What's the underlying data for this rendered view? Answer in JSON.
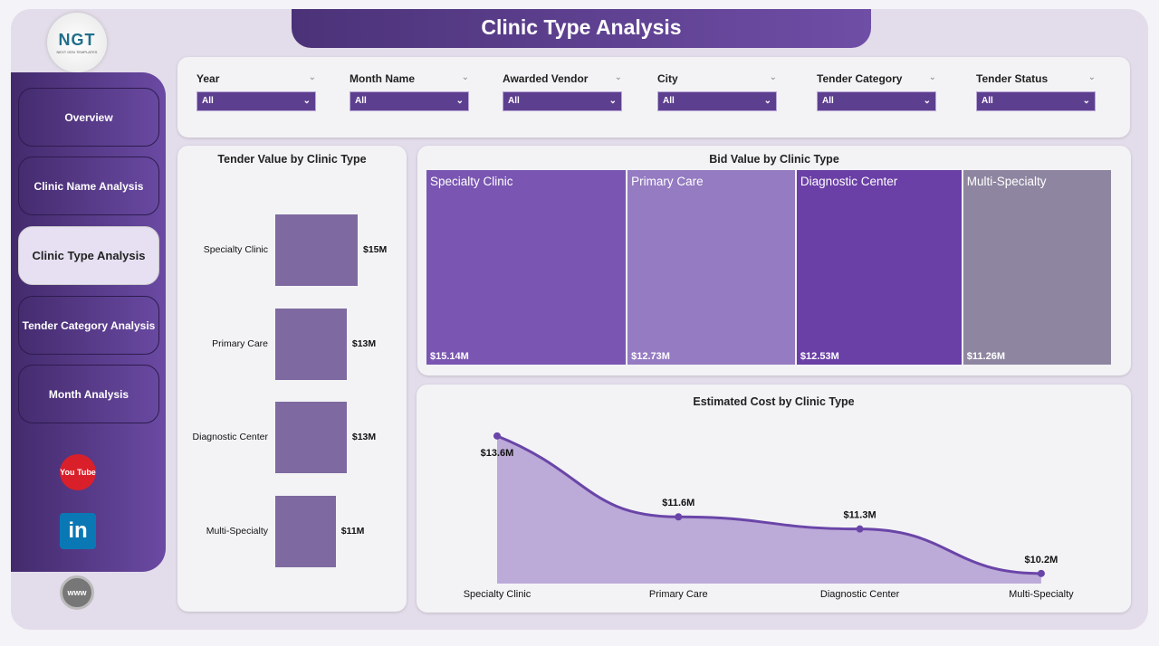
{
  "title": "Clinic Type Analysis",
  "logo": {
    "text": "NGT",
    "subtitle": "NEXT GEN TEMPLATES"
  },
  "nav": [
    {
      "label": "Overview"
    },
    {
      "label": "Clinic Name Analysis"
    },
    {
      "label": "Clinic Type Analysis",
      "active": true
    },
    {
      "label": "Tender Category Analysis"
    },
    {
      "label": "Month Analysis"
    }
  ],
  "social": [
    {
      "icon": "youtube-icon",
      "label": "You Tube"
    },
    {
      "icon": "linkedin-icon",
      "label": "in"
    },
    {
      "icon": "website-icon",
      "label": "www"
    }
  ],
  "filters": [
    {
      "label": "Year",
      "value": "All"
    },
    {
      "label": "Month Name",
      "value": "All"
    },
    {
      "label": "Awarded Vendor",
      "value": "All"
    },
    {
      "label": "City",
      "value": "All"
    },
    {
      "label": "Tender Category",
      "value": "All"
    },
    {
      "label": "Tender Status",
      "value": "All"
    }
  ],
  "colors": {
    "accent": "#5d3f8f",
    "bar": "#7e6aa0",
    "line": "#6a45a8",
    "area": "#bcaad8"
  },
  "chart_data": [
    {
      "type": "bar",
      "orientation": "horizontal",
      "title": "Tender Value by Clinic Type",
      "categories": [
        "Specialty Clinic",
        "Primary Care",
        "Diagnostic Center",
        "Multi-Specialty"
      ],
      "values": [
        15,
        13,
        13,
        11
      ],
      "labels": [
        "$15M",
        "$13M",
        "$13M",
        "$11M"
      ]
    },
    {
      "type": "treemap",
      "title": "Bid Value by Clinic Type",
      "categories": [
        "Specialty Clinic",
        "Primary Care",
        "Diagnostic Center",
        "Multi-Specialty"
      ],
      "values": [
        15.14,
        12.73,
        12.53,
        11.26
      ],
      "labels": [
        "$15.14M",
        "$12.73M",
        "$12.53M",
        "$11.26M"
      ],
      "colors": [
        "#7a56b2",
        "#957bc2",
        "#6a3fa6",
        "#8e86a0"
      ]
    },
    {
      "type": "area",
      "title": "Estimated Cost by Clinic Type",
      "categories": [
        "Specialty Clinic",
        "Primary Care",
        "Diagnostic Center",
        "Multi-Specialty"
      ],
      "values": [
        13.6,
        11.6,
        11.3,
        10.2
      ],
      "labels": [
        "$13.6M",
        "$11.6M",
        "$11.3M",
        "$10.2M"
      ]
    }
  ]
}
